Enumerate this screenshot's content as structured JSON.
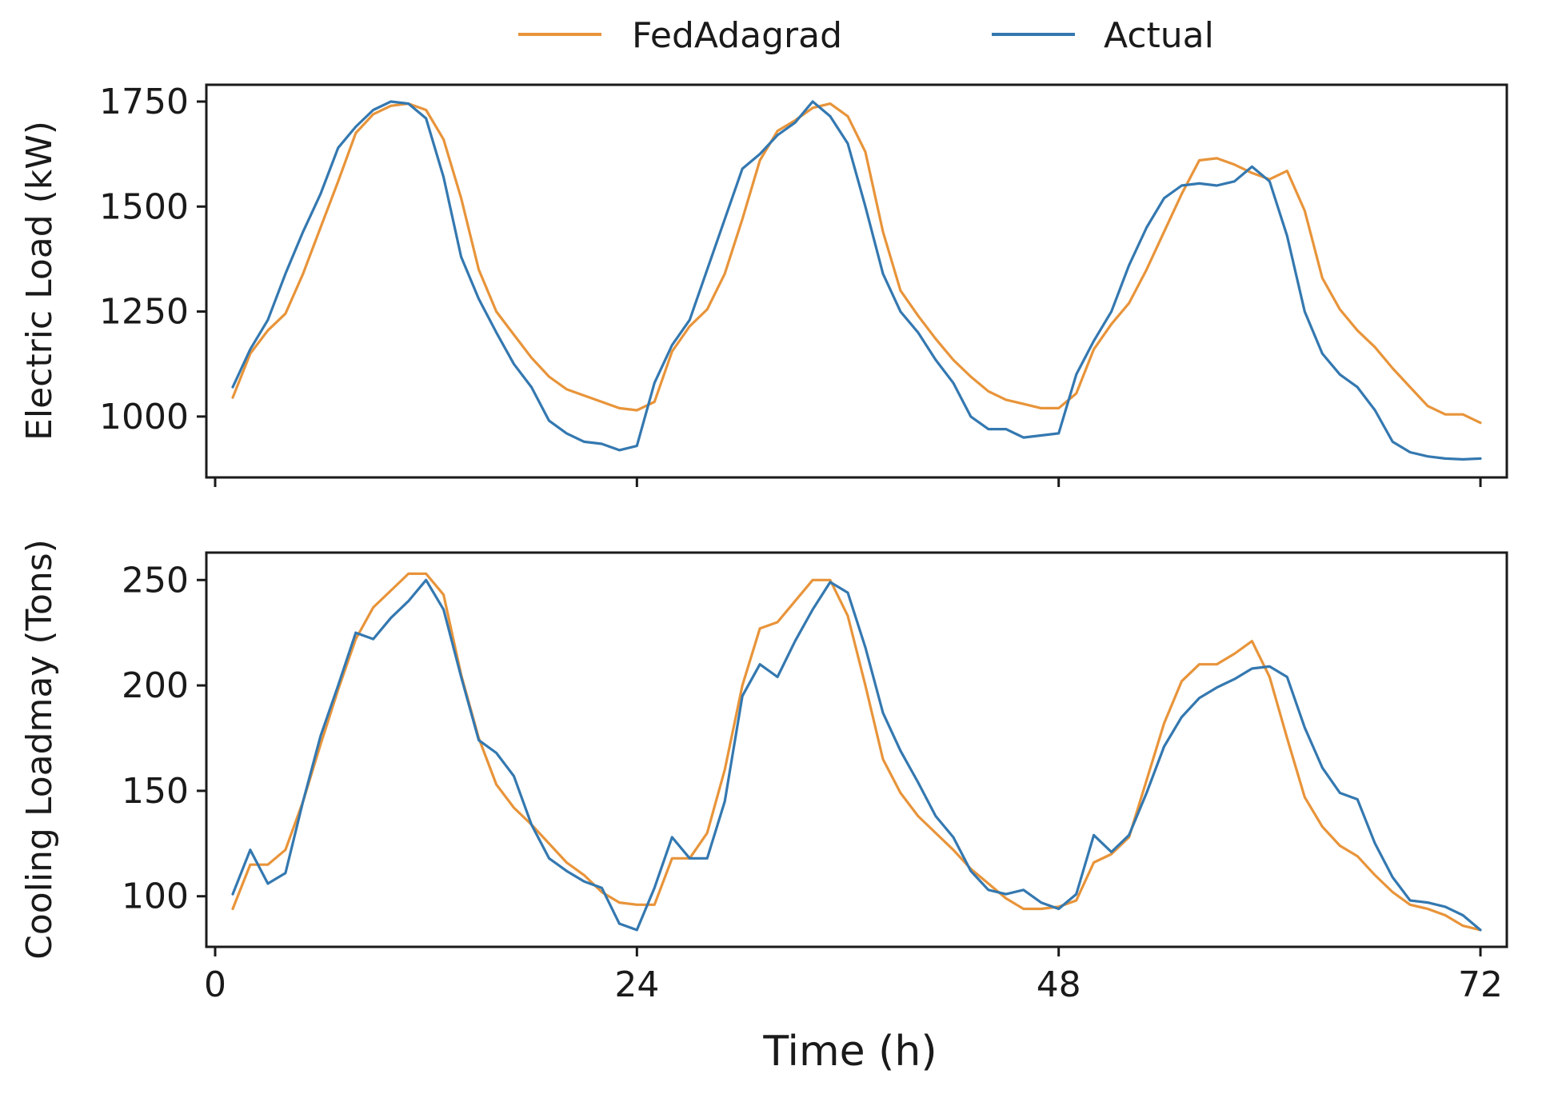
{
  "chart_data": {
    "type": "line",
    "legend": {
      "placement": "top-center",
      "entries": [
        {
          "name": "FedAdagrad",
          "color": "#e8943a"
        },
        {
          "name": "Actual",
          "color": "#3478b0"
        }
      ]
    },
    "xlabel": "Time (h)",
    "xlim": [
      -0.5,
      73.5
    ],
    "xticks": [
      0,
      24,
      48,
      72
    ],
    "xtick_labels": [
      "0",
      "24",
      "48",
      "72"
    ],
    "panels": [
      {
        "id": "electric",
        "ylabel": "Electric Load (kW)",
        "ylim": [
          855,
          1790
        ],
        "yticks": [
          1000,
          1250,
          1500,
          1750
        ],
        "ytick_labels": [
          "1000",
          "1250",
          "1500",
          "1750"
        ],
        "series": [
          {
            "name": "FedAdagrad",
            "color": "#e8943a",
            "x": [
              1,
              2,
              3,
              4,
              5,
              6,
              7,
              8,
              9,
              10,
              11,
              12,
              13,
              14,
              15,
              16,
              17,
              18,
              19,
              20,
              21,
              22,
              23,
              24,
              25,
              26,
              27,
              28,
              29,
              30,
              31,
              32,
              33,
              34,
              35,
              36,
              37,
              38,
              39,
              40,
              41,
              42,
              43,
              44,
              45,
              46,
              47,
              48,
              49,
              50,
              51,
              52,
              53,
              54,
              55,
              56,
              57,
              58,
              59,
              60,
              61,
              62,
              63,
              64,
              65,
              66,
              67,
              68,
              69,
              70,
              71,
              72
            ],
            "y": [
              1045,
              1150,
              1205,
              1245,
              1340,
              1450,
              1560,
              1675,
              1720,
              1740,
              1745,
              1730,
              1660,
              1520,
              1350,
              1250,
              1195,
              1140,
              1095,
              1065,
              1050,
              1035,
              1020,
              1015,
              1035,
              1155,
              1215,
              1255,
              1340,
              1470,
              1610,
              1680,
              1705,
              1735,
              1745,
              1715,
              1630,
              1440,
              1300,
              1240,
              1185,
              1135,
              1095,
              1060,
              1040,
              1030,
              1020,
              1020,
              1055,
              1160,
              1220,
              1270,
              1350,
              1440,
              1530,
              1610,
              1615,
              1600,
              1580,
              1565,
              1585,
              1490,
              1330,
              1255,
              1205,
              1165,
              1115,
              1070,
              1025,
              1005,
              1005,
              985
            ]
          },
          {
            "name": "Actual",
            "color": "#3478b0",
            "x": [
              1,
              2,
              3,
              4,
              5,
              6,
              7,
              8,
              9,
              10,
              11,
              12,
              13,
              14,
              15,
              16,
              17,
              18,
              19,
              20,
              21,
              22,
              23,
              24,
              25,
              26,
              27,
              28,
              29,
              30,
              31,
              32,
              33,
              34,
              35,
              36,
              37,
              38,
              39,
              40,
              41,
              42,
              43,
              44,
              45,
              46,
              47,
              48,
              49,
              50,
              51,
              52,
              53,
              54,
              55,
              56,
              57,
              58,
              59,
              60,
              61,
              62,
              63,
              64,
              65,
              66,
              67,
              68,
              69,
              70,
              71,
              72
            ],
            "y": [
              1070,
              1160,
              1230,
              1340,
              1440,
              1530,
              1640,
              1690,
              1730,
              1750,
              1745,
              1710,
              1570,
              1380,
              1280,
              1200,
              1125,
              1070,
              990,
              960,
              940,
              935,
              920,
              930,
              1080,
              1170,
              1230,
              1350,
              1470,
              1590,
              1625,
              1670,
              1700,
              1750,
              1715,
              1650,
              1500,
              1340,
              1250,
              1200,
              1135,
              1080,
              1000,
              970,
              970,
              950,
              955,
              960,
              1100,
              1180,
              1250,
              1360,
              1450,
              1520,
              1550,
              1555,
              1550,
              1560,
              1595,
              1560,
              1430,
              1250,
              1150,
              1100,
              1070,
              1015,
              940,
              915,
              905,
              900,
              898,
              900
            ]
          }
        ]
      },
      {
        "id": "cooling",
        "ylabel": "Cooling Loadmay (Tons)",
        "ylim": [
          76,
          263
        ],
        "yticks": [
          100,
          150,
          200,
          250
        ],
        "ytick_labels": [
          "100",
          "150",
          "200",
          "250"
        ],
        "series": [
          {
            "name": "FedAdagrad",
            "color": "#e8943a",
            "x": [
              1,
              2,
              3,
              4,
              5,
              6,
              7,
              8,
              9,
              10,
              11,
              12,
              13,
              14,
              15,
              16,
              17,
              18,
              19,
              20,
              21,
              22,
              23,
              24,
              25,
              26,
              27,
              28,
              29,
              30,
              31,
              32,
              33,
              34,
              35,
              36,
              37,
              38,
              39,
              40,
              41,
              42,
              43,
              44,
              45,
              46,
              47,
              48,
              49,
              50,
              51,
              52,
              53,
              54,
              55,
              56,
              57,
              58,
              59,
              60,
              61,
              62,
              63,
              64,
              65,
              66,
              67,
              68,
              69,
              70,
              71,
              72
            ],
            "y": [
              94,
              115,
              115,
              122,
              145,
              172,
              198,
              222,
              237,
              245,
              253,
              253,
              243,
              205,
              175,
              153,
              142,
              134,
              125,
              116,
              110,
              102,
              97,
              96,
              96,
              118,
              118,
              130,
              160,
              200,
              227,
              230,
              240,
              250,
              250,
              233,
              200,
              165,
              149,
              138,
              130,
              122,
              113,
              106,
              99,
              94,
              94,
              95,
              98,
              116,
              120,
              128,
              155,
              182,
              202,
              210,
              210,
              215,
              221,
              204,
              175,
              147,
              133,
              124,
              119,
              110,
              102,
              96,
              94,
              91,
              86,
              84
            ]
          },
          {
            "name": "Actual",
            "color": "#3478b0",
            "x": [
              1,
              2,
              3,
              4,
              5,
              6,
              7,
              8,
              9,
              10,
              11,
              12,
              13,
              14,
              15,
              16,
              17,
              18,
              19,
              20,
              21,
              22,
              23,
              24,
              25,
              26,
              27,
              28,
              29,
              30,
              31,
              32,
              33,
              34,
              35,
              36,
              37,
              38,
              39,
              40,
              41,
              42,
              43,
              44,
              45,
              46,
              47,
              48,
              49,
              50,
              51,
              52,
              53,
              54,
              55,
              56,
              57,
              58,
              59,
              60,
              61,
              62,
              63,
              64,
              65,
              66,
              67,
              68,
              69,
              70,
              71,
              72
            ],
            "y": [
              101,
              122,
              106,
              111,
              145,
              176,
              200,
              225,
              222,
              232,
              240,
              250,
              236,
              204,
              174,
              168,
              157,
              134,
              118,
              112,
              107,
              104,
              87,
              84,
              104,
              128,
              118,
              118,
              145,
              195,
              210,
              204,
              221,
              236,
              249,
              244,
              218,
              187,
              169,
              154,
              138,
              128,
              112,
              103,
              101,
              103,
              97,
              94,
              101,
              129,
              121,
              129,
              149,
              171,
              185,
              194,
              199,
              203,
              208,
              209,
              204,
              180,
              161,
              149,
              146,
              125,
              109,
              98,
              97,
              95,
              91,
              84
            ]
          }
        ]
      }
    ]
  }
}
